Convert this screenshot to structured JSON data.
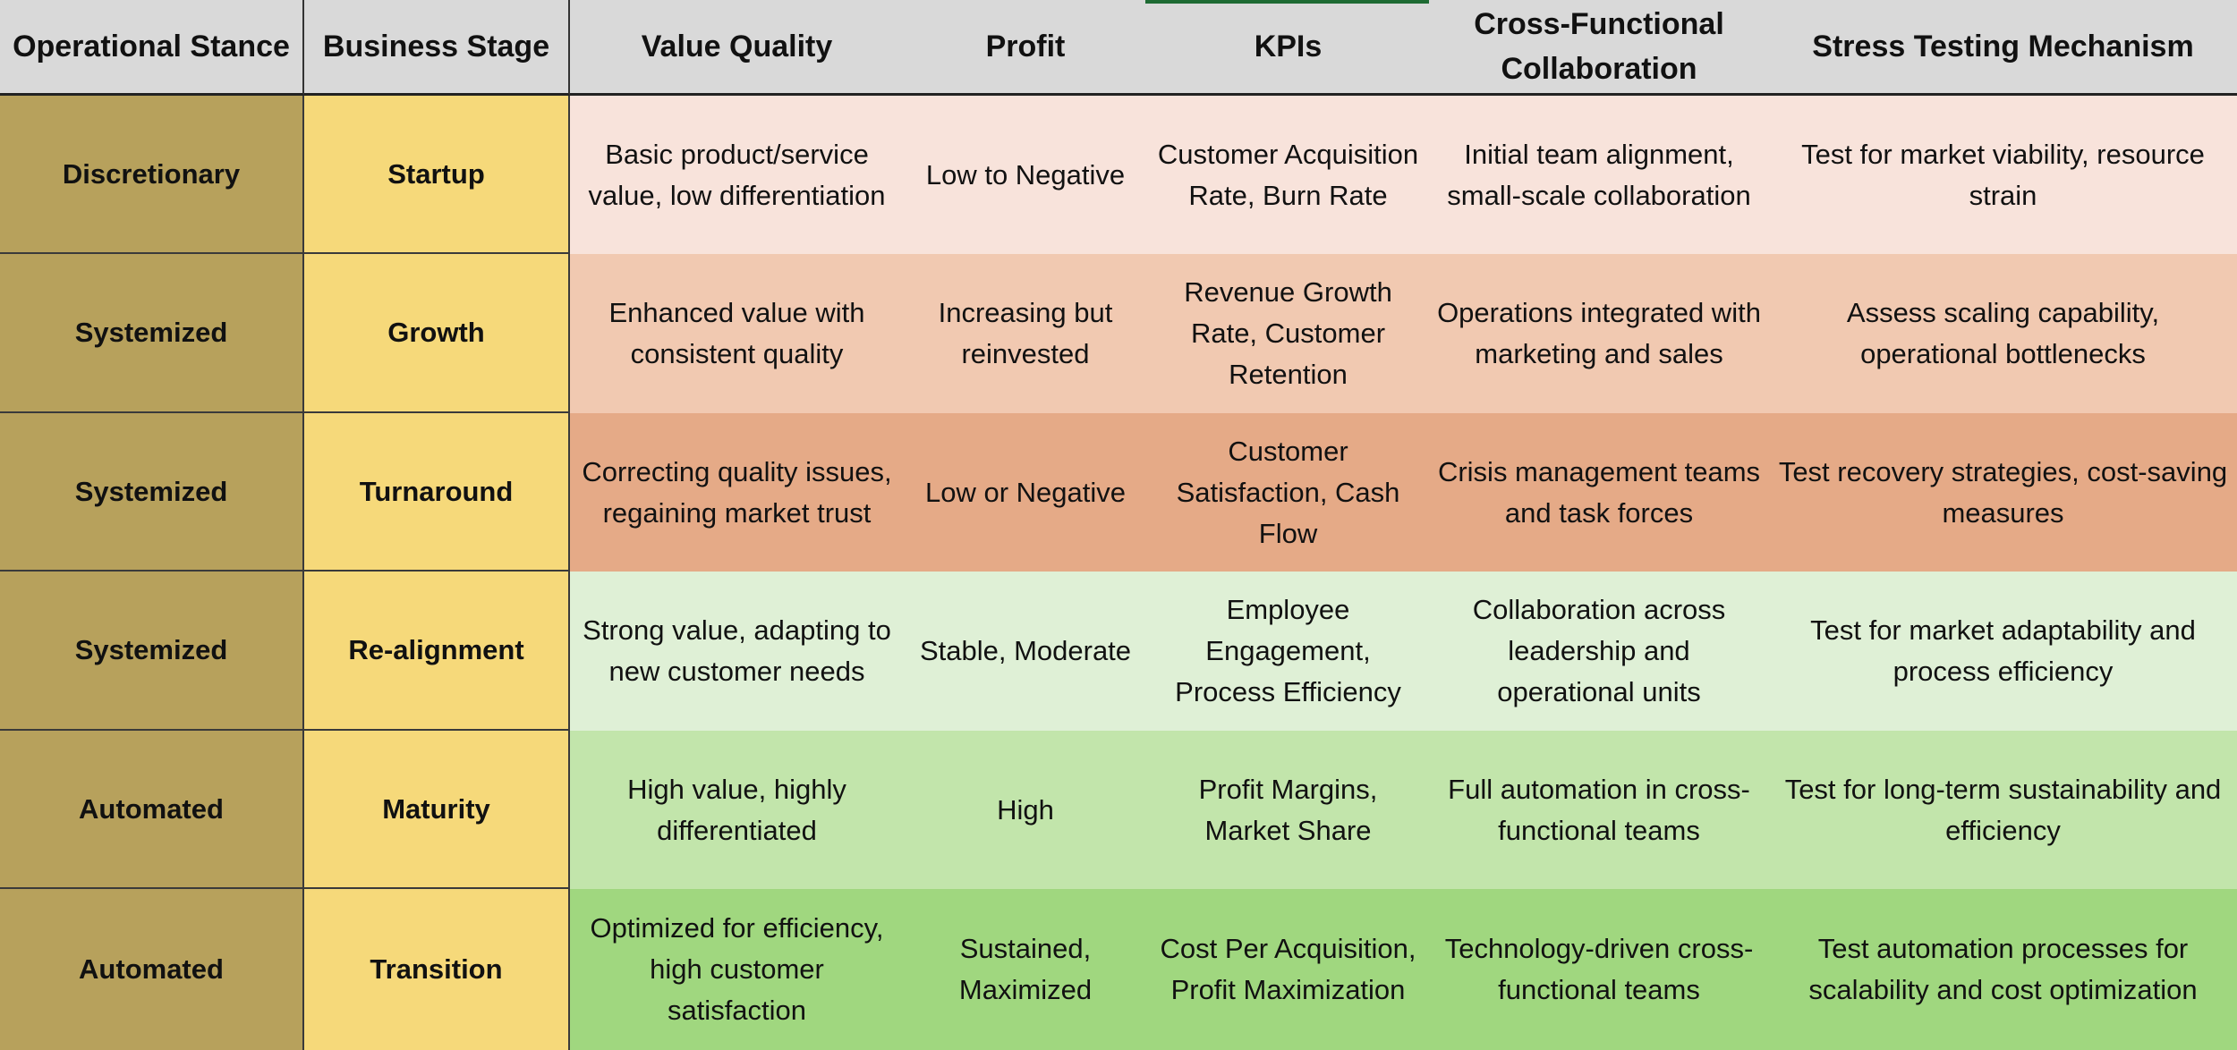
{
  "table": {
    "headers": [
      "Operational Stance",
      "Business Stage",
      "Value Quality",
      "Profit",
      "KPIs",
      "Cross-Functional Collaboration",
      "Stress Testing Mechanism"
    ],
    "rows": [
      {
        "stance": "Discretionary",
        "stage": "Startup",
        "value_quality": "Basic product/service value, low differentiation",
        "profit": "Low to Negative",
        "kpis": "Customer Acquisition Rate, Burn Rate",
        "collaboration": "Initial team alignment, small-scale collaboration",
        "stress_testing": "Test for market viability, resource strain",
        "fill": "#f8e3db"
      },
      {
        "stance": "Systemized",
        "stage": "Growth",
        "value_quality": "Enhanced value with consistent quality",
        "profit": "Increasing but reinvested",
        "kpis": "Revenue Growth Rate, Customer Retention",
        "collaboration": "Operations integrated with marketing and sales",
        "stress_testing": "Assess scaling capability, operational bottlenecks",
        "fill": "#f1c9b1"
      },
      {
        "stance": "Systemized",
        "stage": "Turnaround",
        "value_quality": "Correcting quality issues, regaining market trust",
        "profit": "Low or Negative",
        "kpis": "Customer Satisfaction, Cash Flow",
        "collaboration": "Crisis management teams and task forces",
        "stress_testing": "Test recovery strategies, cost-saving measures",
        "fill": "#e5aa87"
      },
      {
        "stance": "Systemized",
        "stage": "Re-alignment",
        "value_quality": "Strong value, adapting to new customer needs",
        "profit": "Stable, Moderate",
        "kpis": "Employee Engagement, Process Efficiency",
        "collaboration": "Collaboration across leadership and operational units",
        "stress_testing": "Test for market adaptability and process efficiency",
        "fill": "#dff0d6"
      },
      {
        "stance": "Automated",
        "stage": "Maturity",
        "value_quality": "High value, highly differentiated",
        "profit": "High",
        "kpis": "Profit Margins, Market Share",
        "collaboration": "Full automation in cross-functional teams",
        "stress_testing": "Test for long-term sustainability and efficiency",
        "fill": "#c2e5ab"
      },
      {
        "stance": "Automated",
        "stage": "Transition",
        "value_quality": "Optimized for efficiency, high customer satisfaction",
        "profit": "Sustained, Maximized",
        "kpis": "Cost Per Acquisition, Profit Maximization",
        "collaboration": "Technology-driven cross-functional teams",
        "stress_testing": "Test automation processes for scalability and cost optimization",
        "fill": "#a0d77f"
      }
    ]
  },
  "colors": {
    "header_bg": "#d9d9d9",
    "stance_bg": "#b7a15c",
    "stage_bg": "#f6d97a",
    "top_accent": "#1e6b33"
  }
}
